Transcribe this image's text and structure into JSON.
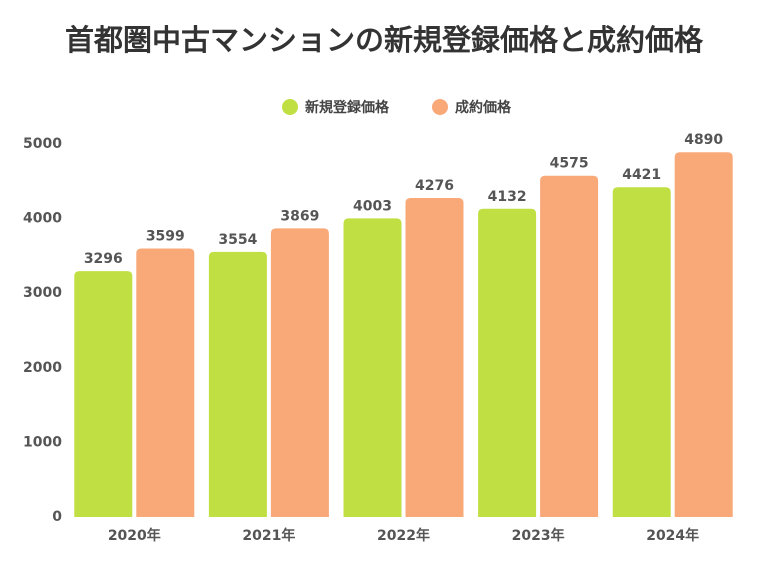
{
  "chart_data": {
    "type": "bar",
    "title": "首都圏中古マンションの新規登録価格と成約価格",
    "categories": [
      "2020年",
      "2021年",
      "2022年",
      "2023年",
      "2024年"
    ],
    "series": [
      {
        "name": "新規登録価格",
        "color": "#c0df42",
        "values": [
          3296,
          3554,
          4003,
          4132,
          4421
        ]
      },
      {
        "name": "成約価格",
        "color": "#f9a878",
        "values": [
          3599,
          3869,
          4276,
          4575,
          4890
        ]
      }
    ],
    "ylim": [
      0,
      5000
    ],
    "yticks": [
      0,
      1000,
      2000,
      3000,
      4000,
      5000
    ],
    "grid": false,
    "legend": "top"
  }
}
